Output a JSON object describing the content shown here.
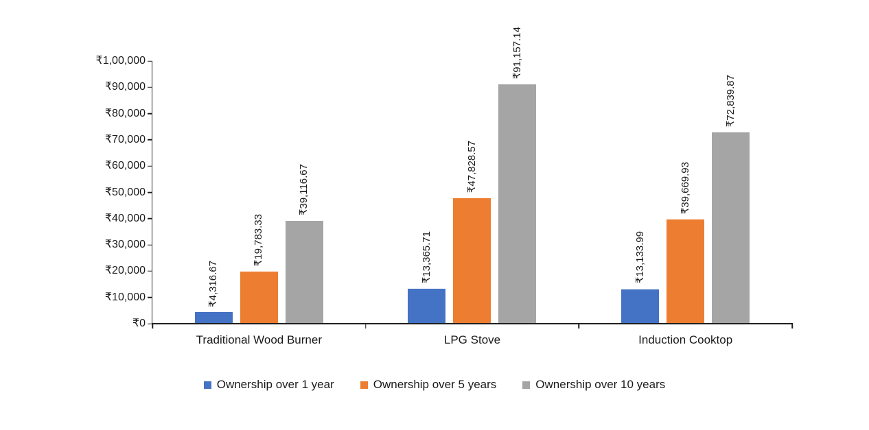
{
  "chart_data": {
    "type": "bar",
    "title": "",
    "currency_symbol": "₹",
    "categories": [
      "Traditional Wood Burner",
      "LPG Stove",
      "Induction Cooktop"
    ],
    "series": [
      {
        "name": "Ownership over 1 year",
        "color": "#4472C4",
        "values": [
          4316.67,
          13365.71,
          13133.99
        ],
        "labels": [
          "₹4,316.67",
          "₹13,365.71",
          "₹13,133.99"
        ]
      },
      {
        "name": "Ownership over 5 years",
        "color": "#ED7D31",
        "values": [
          19783.33,
          47828.57,
          39669.93
        ],
        "labels": [
          "₹19,783.33",
          "₹47,828.57",
          "₹39,669.93"
        ]
      },
      {
        "name": "Ownership over 10 years",
        "color": "#A5A5A5",
        "values": [
          39116.67,
          91157.14,
          72839.87
        ],
        "labels": [
          "₹39,116.67",
          "₹91,157.14",
          "₹72,839.87"
        ]
      }
    ],
    "xlabel": "",
    "ylabel": "",
    "ylim": [
      0,
      100000
    ],
    "y_tick_step": 10000,
    "y_tick_labels": [
      "₹0",
      "₹10,000",
      "₹20,000",
      "₹30,000",
      "₹40,000",
      "₹50,000",
      "₹60,000",
      "₹70,000",
      "₹80,000",
      "₹90,000",
      "₹1,00,000"
    ],
    "grid": false,
    "legend_position": "bottom",
    "axis_color": "#1f1f1f",
    "background_color": "#ffffff"
  }
}
